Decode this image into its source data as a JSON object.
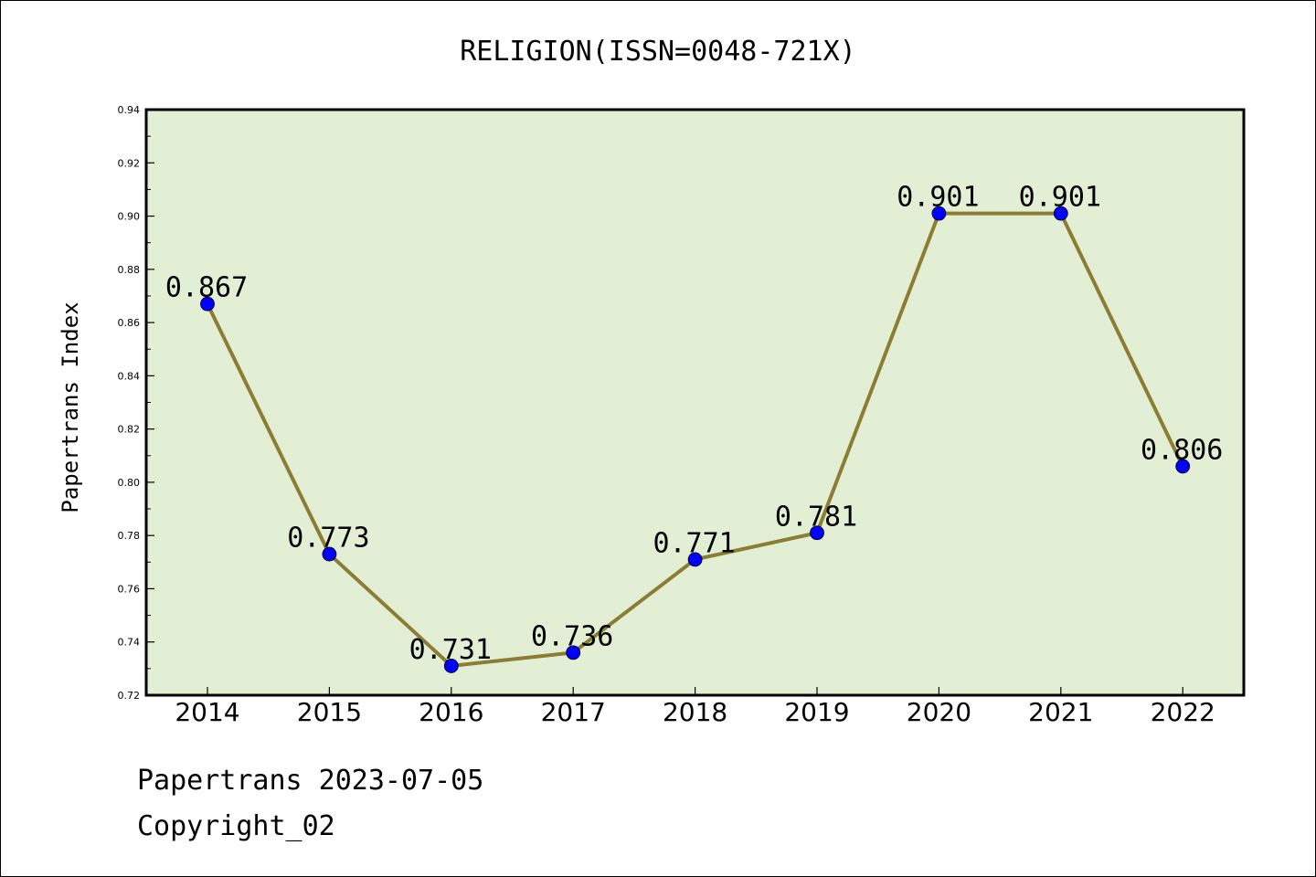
{
  "chart_data": {
    "type": "line",
    "title": "RELIGION(ISSN=0048-721X)",
    "xlabel": "",
    "ylabel": "Papertrans Index",
    "categories": [
      "2014",
      "2015",
      "2016",
      "2017",
      "2018",
      "2019",
      "2020",
      "2021",
      "2022"
    ],
    "series": [
      {
        "values": [
          0.867,
          0.773,
          0.731,
          0.736,
          0.771,
          0.781,
          0.901,
          0.901,
          0.806
        ],
        "labels": [
          "0.867",
          "0.773",
          "0.731",
          "0.736",
          "0.771",
          "0.781",
          "0.901",
          "0.901",
          "0.806"
        ]
      }
    ],
    "ylim": [
      0.72,
      0.94
    ],
    "yticks": [
      "0.72",
      "0.74",
      "0.76",
      "0.78",
      "0.80",
      "0.82",
      "0.84",
      "0.86",
      "0.88",
      "0.90",
      "0.92",
      "0.94"
    ],
    "grid": false,
    "legend": "none",
    "colors": {
      "plot_background": "#e2efd4",
      "line": "#8b7d33",
      "marker": "#0000ff"
    }
  },
  "footer": {
    "line1": "Papertrans 2023-07-05",
    "line2": "Copyright_02"
  }
}
